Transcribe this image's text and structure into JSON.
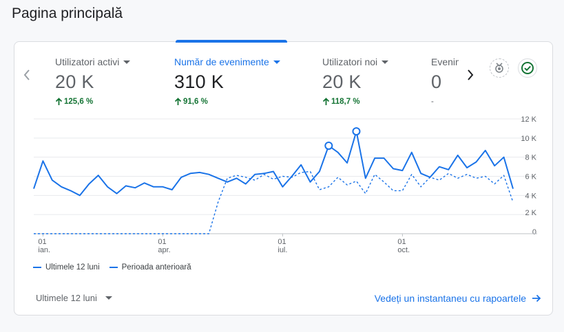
{
  "page": {
    "title": "Pagina principală"
  },
  "metrics": [
    {
      "label": "Utilizatori activi",
      "value": "20 K",
      "change": "125,6 %"
    },
    {
      "label": "Număr de evenimente",
      "value": "310 K",
      "change": "91,6 %"
    },
    {
      "label": "Utilizatori noi",
      "value": "20 K",
      "change": "118,7 %"
    },
    {
      "label": "Evenimente",
      "value": "0",
      "change": "-"
    }
  ],
  "icons": {
    "prev": "chevron-left-icon",
    "next": "chevron-right-icon",
    "insights": "insights-badge-icon",
    "check": "check-circle-icon",
    "trend_up": "arrow-up-icon",
    "caret": "caret-down-icon",
    "link_arrow": "arrow-right-icon"
  },
  "colors": {
    "accent": "#1a73e8",
    "positive": "#137333",
    "grid": "#e8eaed",
    "muted": "#5f6368"
  },
  "chart_data": {
    "type": "line",
    "y_ticks": [
      "12 K",
      "10 K",
      "8 K",
      "6 K",
      "4 K",
      "2 K",
      "0"
    ],
    "ylim": [
      0,
      12000
    ],
    "x_ticks": [
      {
        "day": "01",
        "month": "ian.",
        "index": 1
      },
      {
        "day": "01",
        "month": "apr.",
        "index": 14
      },
      {
        "day": "01",
        "month": "iul.",
        "index": 27
      },
      {
        "day": "01",
        "month": "oct.",
        "index": 40
      }
    ],
    "grid": true,
    "series": [
      {
        "name": "Ultimele 12 luni",
        "style": "solid",
        "values": [
          4700,
          7600,
          5600,
          4900,
          4500,
          4000,
          5200,
          6100,
          4900,
          4200,
          5000,
          4800,
          5300,
          4900,
          4900,
          4600,
          5900,
          6300,
          6400,
          6200,
          5800,
          5400,
          5800,
          5200,
          6200,
          6300,
          6500,
          4900,
          6000,
          7200,
          5400,
          6500,
          9200,
          8500,
          7400,
          10700,
          5800,
          7900,
          7900,
          6800,
          6600,
          8500,
          6300,
          5900,
          7000,
          6700,
          8200,
          6900,
          7500,
          8700,
          7100,
          8000,
          4700
        ],
        "markers": [
          32,
          35
        ]
      },
      {
        "name": "Perioada anterioară",
        "style": "dashed",
        "values": [
          0,
          0,
          0,
          0,
          0,
          0,
          0,
          0,
          0,
          0,
          0,
          0,
          0,
          0,
          0,
          0,
          0,
          0,
          0,
          0,
          3300,
          5800,
          6100,
          5900,
          5600,
          6200,
          5700,
          6000,
          5900,
          6400,
          6500,
          4600,
          4900,
          5900,
          5100,
          5500,
          4200,
          6200,
          5400,
          4500,
          4500,
          6200,
          4900,
          5900,
          5600,
          6300,
          5800,
          6200,
          5800,
          6000,
          5200,
          6100,
          3300
        ]
      }
    ]
  },
  "legend": {
    "current": "Ultimele 12 luni",
    "previous": "Perioada anterioară"
  },
  "footer": {
    "range_label": "Ultimele 12 luni",
    "snapshot_link": "Vedeți un instantaneu cu rapoartele"
  }
}
